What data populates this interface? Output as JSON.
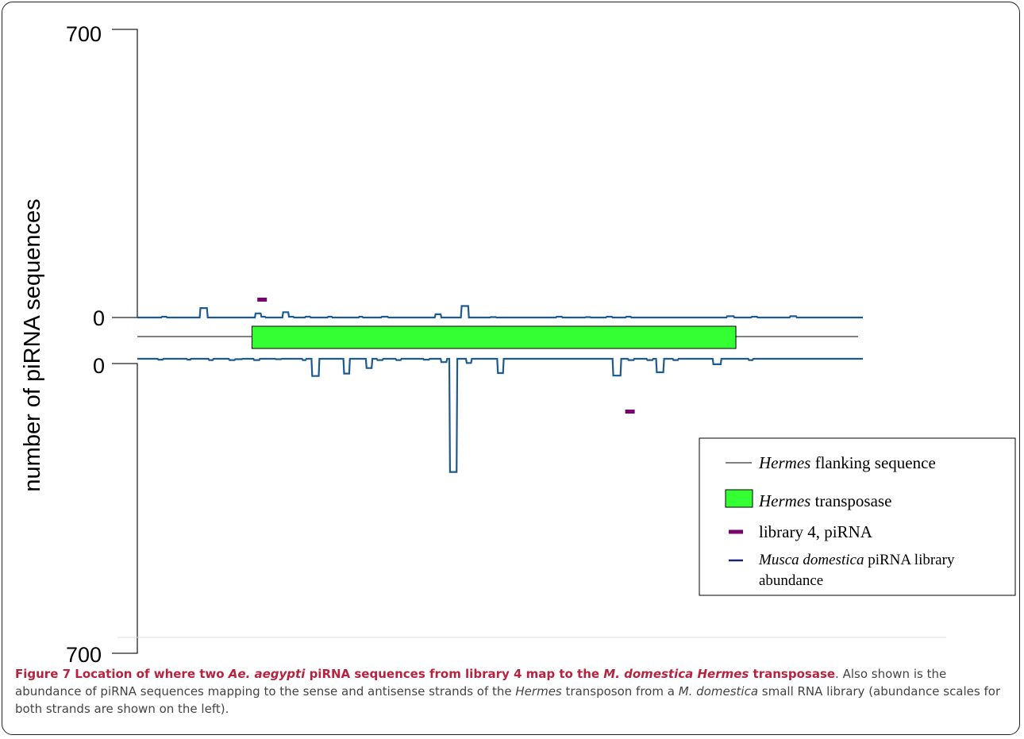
{
  "chart_data": {
    "type": "line",
    "ylabel": "number of piRNA sequences",
    "yticks": {
      "top_max": "700",
      "top_zero": "0",
      "bottom_zero": "0",
      "bottom_max": "700"
    },
    "ylim_sense": [
      0,
      700
    ],
    "ylim_antisense": [
      0,
      700
    ],
    "x_span": [
      0,
      1000
    ],
    "flanking_sequence": [
      0,
      1000
    ],
    "transposase": [
      158,
      825
    ],
    "series": [
      {
        "name": "Musca domestica piRNA library abundance (sense)",
        "strand": "sense",
        "points": [
          [
            0,
            0
          ],
          [
            33,
            0
          ],
          [
            34,
            2
          ],
          [
            40,
            2
          ],
          [
            41,
            0
          ],
          [
            86,
            0
          ],
          [
            87,
            23
          ],
          [
            96,
            23
          ],
          [
            97,
            0
          ],
          [
            162,
            0
          ],
          [
            163,
            10
          ],
          [
            170,
            10
          ],
          [
            171,
            2
          ],
          [
            176,
            2
          ],
          [
            177,
            0
          ],
          [
            200,
            0
          ],
          [
            201,
            13
          ],
          [
            208,
            13
          ],
          [
            209,
            2
          ],
          [
            215,
            2
          ],
          [
            216,
            0
          ],
          [
            231,
            0
          ],
          [
            232,
            2
          ],
          [
            238,
            2
          ],
          [
            239,
            0
          ],
          [
            262,
            0
          ],
          [
            263,
            2
          ],
          [
            268,
            2
          ],
          [
            269,
            0
          ],
          [
            305,
            0
          ],
          [
            306,
            2
          ],
          [
            310,
            2
          ],
          [
            311,
            0
          ],
          [
            336,
            0
          ],
          [
            337,
            2
          ],
          [
            345,
            2
          ],
          [
            346,
            0
          ],
          [
            410,
            0
          ],
          [
            411,
            8
          ],
          [
            418,
            8
          ],
          [
            419,
            0
          ],
          [
            446,
            0
          ],
          [
            447,
            28
          ],
          [
            456,
            28
          ],
          [
            457,
            0
          ],
          [
            486,
            0
          ],
          [
            487,
            1
          ],
          [
            494,
            1
          ],
          [
            495,
            0
          ],
          [
            577,
            0
          ],
          [
            578,
            2
          ],
          [
            585,
            2
          ],
          [
            586,
            0
          ],
          [
            617,
            0
          ],
          [
            618,
            1
          ],
          [
            624,
            1
          ],
          [
            625,
            0
          ],
          [
            646,
            0
          ],
          [
            647,
            2
          ],
          [
            654,
            2
          ],
          [
            655,
            0
          ],
          [
            673,
            0
          ],
          [
            674,
            2
          ],
          [
            680,
            2
          ],
          [
            681,
            0
          ],
          [
            812,
            0
          ],
          [
            813,
            3
          ],
          [
            822,
            3
          ],
          [
            823,
            0
          ],
          [
            846,
            0
          ],
          [
            847,
            2
          ],
          [
            854,
            2
          ],
          [
            855,
            0
          ],
          [
            899,
            0
          ],
          [
            900,
            3
          ],
          [
            908,
            3
          ],
          [
            909,
            0
          ],
          [
            1000,
            0
          ]
        ]
      },
      {
        "name": "Musca domestica piRNA library abundance (antisense)",
        "strand": "antisense",
        "points": [
          [
            0,
            0
          ],
          [
            28,
            0
          ],
          [
            29,
            2
          ],
          [
            35,
            2
          ],
          [
            36,
            0
          ],
          [
            68,
            0
          ],
          [
            69,
            2
          ],
          [
            73,
            2
          ],
          [
            74,
            0
          ],
          [
            98,
            0
          ],
          [
            99,
            3
          ],
          [
            104,
            3
          ],
          [
            105,
            0
          ],
          [
            126,
            0
          ],
          [
            127,
            3
          ],
          [
            134,
            3
          ],
          [
            135,
            1
          ],
          [
            144,
            1
          ],
          [
            145,
            0
          ],
          [
            160,
            0
          ],
          [
            161,
            3
          ],
          [
            168,
            3
          ],
          [
            169,
            0
          ],
          [
            190,
            0
          ],
          [
            191,
            1
          ],
          [
            198,
            1
          ],
          [
            199,
            0
          ],
          [
            227,
            0
          ],
          [
            228,
            3
          ],
          [
            232,
            3
          ],
          [
            233,
            0
          ],
          [
            240,
            0
          ],
          [
            241,
            41
          ],
          [
            250,
            41
          ],
          [
            251,
            0
          ],
          [
            284,
            0
          ],
          [
            285,
            35
          ],
          [
            292,
            35
          ],
          [
            293,
            0
          ],
          [
            315,
            0
          ],
          [
            316,
            22
          ],
          [
            323,
            22
          ],
          [
            324,
            0
          ],
          [
            330,
            0
          ],
          [
            331,
            3
          ],
          [
            338,
            3
          ],
          [
            339,
            0
          ],
          [
            356,
            0
          ],
          [
            357,
            3
          ],
          [
            363,
            3
          ],
          [
            364,
            0
          ],
          [
            394,
            0
          ],
          [
            395,
            2
          ],
          [
            402,
            2
          ],
          [
            403,
            0
          ],
          [
            418,
            0
          ],
          [
            419,
            8
          ],
          [
            426,
            8
          ],
          [
            427,
            0
          ],
          [
            430,
            0
          ],
          [
            431,
            269
          ],
          [
            440,
            269
          ],
          [
            441,
            0
          ],
          [
            453,
            0
          ],
          [
            454,
            10
          ],
          [
            460,
            10
          ],
          [
            461,
            0
          ],
          [
            496,
            0
          ],
          [
            497,
            34
          ],
          [
            504,
            34
          ],
          [
            505,
            0
          ],
          [
            655,
            0
          ],
          [
            656,
            40
          ],
          [
            666,
            40
          ],
          [
            667,
            0
          ],
          [
            676,
            0
          ],
          [
            677,
            3
          ],
          [
            684,
            3
          ],
          [
            685,
            0
          ],
          [
            702,
            0
          ],
          [
            703,
            3
          ],
          [
            710,
            3
          ],
          [
            711,
            0
          ],
          [
            715,
            0
          ],
          [
            716,
            32
          ],
          [
            725,
            32
          ],
          [
            726,
            0
          ],
          [
            738,
            0
          ],
          [
            739,
            3
          ],
          [
            745,
            3
          ],
          [
            746,
            0
          ],
          [
            793,
            0
          ],
          [
            794,
            13
          ],
          [
            804,
            13
          ],
          [
            805,
            0
          ],
          [
            842,
            0
          ],
          [
            843,
            3
          ],
          [
            848,
            3
          ],
          [
            849,
            0
          ],
          [
            1000,
            0
          ]
        ]
      }
    ],
    "library4_piRNA_hits": [
      {
        "strand": "sense",
        "x": 172
      },
      {
        "strand": "antisense",
        "x": 679
      }
    ],
    "legend_placement": "bottom-right",
    "legend": [
      {
        "label_italic": "Hermes",
        "label_rest": " flanking sequence",
        "symbol": "thin-line"
      },
      {
        "label_italic": "Hermes",
        "label_rest": " transposase",
        "symbol": "green-box"
      },
      {
        "label_rest": "library 4, piRNA",
        "symbol": "purple-dash"
      },
      {
        "label_italic": "Musca domestica",
        "label_rest": " piRNA library",
        "label_line2": "abundance",
        "symbol": "navy-line"
      }
    ],
    "colors": {
      "series_line": "#1d5a8e",
      "transposase_fill": "#33ff33",
      "piRNA_hit": "#7a0070",
      "legend_navy": "#1a237e",
      "flanking_line": "#000000"
    }
  },
  "caption": {
    "figure_label": "Figure 7",
    "title_1": " Location of where two ",
    "title_italic_1": "Ae. aegypti",
    "title_2": " piRNA sequences from library 4 map to the ",
    "title_italic_2": "M. domestica Hermes",
    "title_3": " transposase",
    "body_1": ". Also shown is the abundance of piRNA sequences mapping to the sense and antisense strands of the ",
    "body_italic_1": "Hermes",
    "body_2": " transposon from a ",
    "body_italic_2": "M. domestica",
    "body_3": " small RNA library (abundance scales for both strands are shown on the left)."
  }
}
